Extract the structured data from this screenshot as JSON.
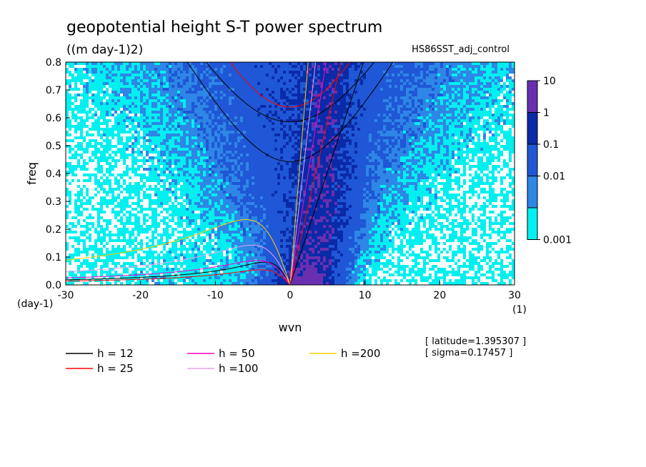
{
  "chart_data": {
    "type": "heatmap",
    "title": "geopotential height S-T power spectrum",
    "units": "((m day-1)2)",
    "run_id": "HS86SST_adj_control",
    "xlabel": "wvn",
    "ylabel": "freq",
    "x_unit_label": "(1)",
    "y_unit_label": "(day-1)",
    "xlim": [
      -30,
      30
    ],
    "ylim": [
      0,
      0.8
    ],
    "x_ticks": [
      -30,
      -20,
      -10,
      0,
      10,
      20,
      30
    ],
    "y_ticks": [
      0.0,
      0.1,
      0.2,
      0.3,
      0.4,
      0.5,
      0.6,
      0.7,
      0.8
    ],
    "x_tick_labels": [
      "-30",
      "-20",
      "-10",
      "0",
      "10",
      "20",
      "30"
    ],
    "y_tick_labels": [
      "0.0",
      "0.1",
      "0.2",
      "0.3",
      "0.4",
      "0.5",
      "0.6",
      "0.7",
      "0.8"
    ],
    "colorbar": {
      "levels": [
        "10",
        "1",
        "0.1",
        "0.01",
        "0.001"
      ],
      "colors": [
        "#6a2fb0",
        "#0a2aa8",
        "#1f57d6",
        "#2e86e6",
        "#00f0f0"
      ]
    },
    "field_colors": [
      "#ffffff",
      "#00f0f0",
      "#2e86e6",
      "#1f57d6",
      "#0a2aa8",
      "#6a2fb0"
    ],
    "dispersion_curves": [
      {
        "label": "h = 12",
        "h": 12,
        "color": "#000000"
      },
      {
        "label": "h = 25",
        "h": 25,
        "color": "#ff0000"
      },
      {
        "label": "h = 50",
        "h": 50,
        "color": "#ff00cc"
      },
      {
        "label": "h =100",
        "h": 100,
        "color": "#e8a0e8"
      },
      {
        "label": "h =200",
        "h": 200,
        "color": "#ffd000"
      }
    ],
    "latitude_text": "[ latitude=1.395307 ]",
    "sigma_text": "[ sigma=0.17457 ]"
  }
}
